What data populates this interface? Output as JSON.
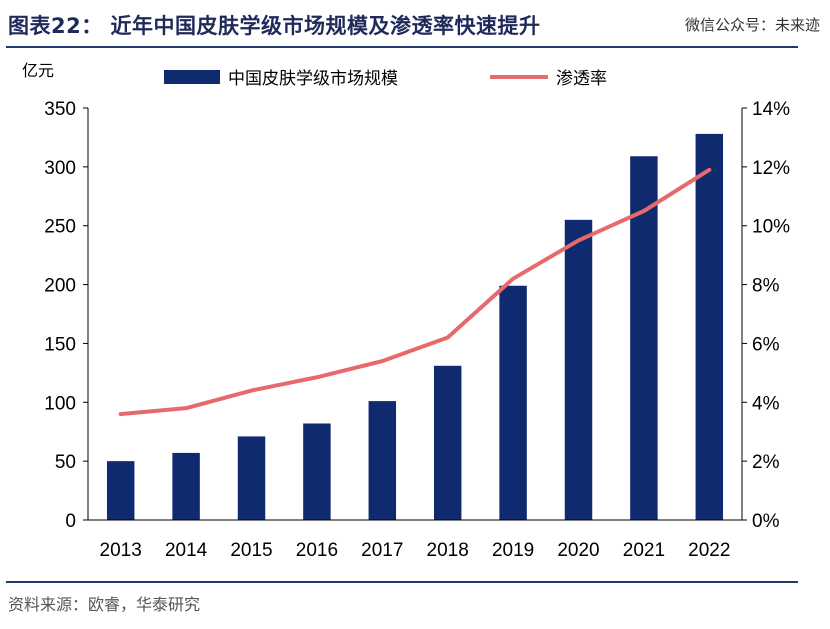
{
  "header": {
    "title": "图表22： 近年中国皮肤学级市场规模及渗透率快速提升",
    "watermark": "微信公众号：未来迹"
  },
  "footer": {
    "source": "资料来源：欧睿，华泰研究"
  },
  "chart_data": {
    "type": "bar",
    "categories": [
      "2013",
      "2014",
      "2015",
      "2016",
      "2017",
      "2018",
      "2019",
      "2020",
      "2021",
      "2022"
    ],
    "series": [
      {
        "name": "中国皮肤学级市场规模",
        "type": "bar",
        "axis": "left",
        "values": [
          50,
          57,
          71,
          82,
          101,
          131,
          199,
          255,
          309,
          328
        ],
        "color": "#0f2a6e"
      },
      {
        "name": "渗透率",
        "type": "line",
        "axis": "right",
        "values": [
          3.6,
          3.8,
          4.4,
          4.85,
          5.4,
          6.2,
          8.2,
          9.5,
          10.5,
          11.9
        ],
        "color": "#e8696b"
      }
    ],
    "left_axis": {
      "unit_label": "亿元",
      "ylim": [
        0,
        350
      ],
      "ticks": [
        "0",
        "50",
        "100",
        "150",
        "200",
        "250",
        "300",
        "350"
      ]
    },
    "right_axis": {
      "ylim": [
        0,
        14
      ],
      "ticks": [
        "0%",
        "2%",
        "4%",
        "6%",
        "8%",
        "10%",
        "12%",
        "14%"
      ]
    },
    "legend_position": "top",
    "grid": false
  }
}
